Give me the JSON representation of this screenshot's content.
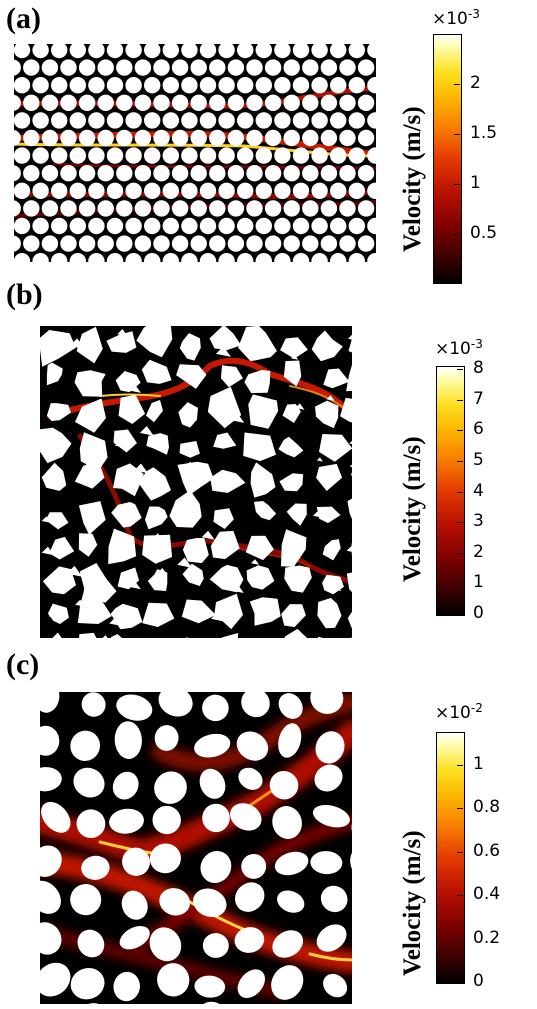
{
  "panels": [
    {
      "letter": "(a)",
      "colorbar": {
        "label": "Velocity (m/s)",
        "multiplier_base": "×10",
        "multiplier_exp": "-3",
        "ticks": [
          {
            "label": "2",
            "value": 2.0
          },
          {
            "label": "1.5",
            "value": 1.5
          },
          {
            "label": "1",
            "value": 1.0
          },
          {
            "label": "0.5",
            "value": 0.5
          }
        ],
        "min": 0.02,
        "max": 2.5
      }
    },
    {
      "letter": "(b)",
      "colorbar": {
        "label": "Velocity (m/s)",
        "multiplier_base": "×10",
        "multiplier_exp": "-3",
        "ticks": [
          {
            "label": "8",
            "value": 8
          },
          {
            "label": "7",
            "value": 7
          },
          {
            "label": "6",
            "value": 6
          },
          {
            "label": "5",
            "value": 5
          },
          {
            "label": "4",
            "value": 4
          },
          {
            "label": "3",
            "value": 3
          },
          {
            "label": "2",
            "value": 2
          },
          {
            "label": "1",
            "value": 1
          },
          {
            "label": "0",
            "value": 0
          }
        ],
        "min": 0,
        "max": 8.1
      }
    },
    {
      "letter": "(c)",
      "colorbar": {
        "label": "Velocity (m/s)",
        "multiplier_base": "×10",
        "multiplier_exp": "-2",
        "ticks": [
          {
            "label": "1",
            "value": 1.0
          },
          {
            "label": "0.8",
            "value": 0.8
          },
          {
            "label": "0.6",
            "value": 0.6
          },
          {
            "label": "0.4",
            "value": 0.4
          },
          {
            "label": "0.2",
            "value": 0.2
          },
          {
            "label": "0",
            "value": 0
          }
        ],
        "min": 0,
        "max": 1.15
      }
    }
  ]
}
